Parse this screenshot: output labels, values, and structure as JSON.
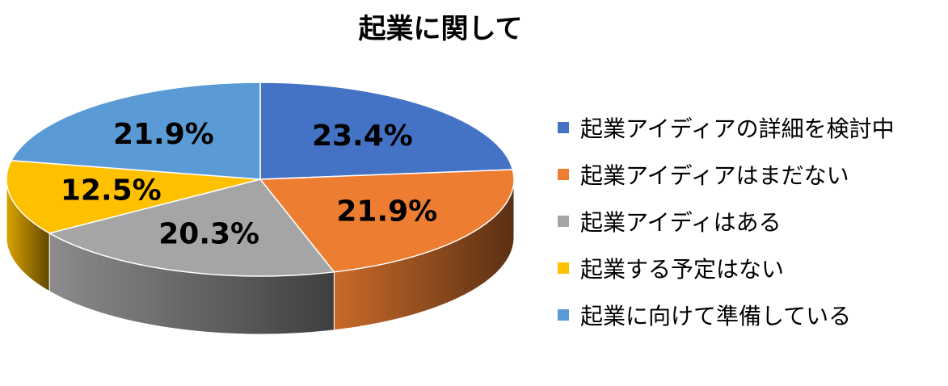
{
  "chart_data": {
    "type": "pie",
    "title": "起業に関して",
    "categories": [
      "起業アイディアの詳細を検討中",
      "起業アイディアはまだない",
      "起業アイディはある",
      "起業する予定はない",
      "起業に向けて準備している"
    ],
    "values": [
      23.4,
      21.9,
      20.3,
      12.5,
      21.9
    ],
    "labels": [
      "23.4%",
      "21.9%",
      "20.3%",
      "12.5%",
      "21.9%"
    ],
    "colors": [
      "#4472C4",
      "#ED7D31",
      "#A5A5A5",
      "#FFC000",
      "#5B9BD5"
    ],
    "legend_position": "right",
    "style": "3d"
  }
}
